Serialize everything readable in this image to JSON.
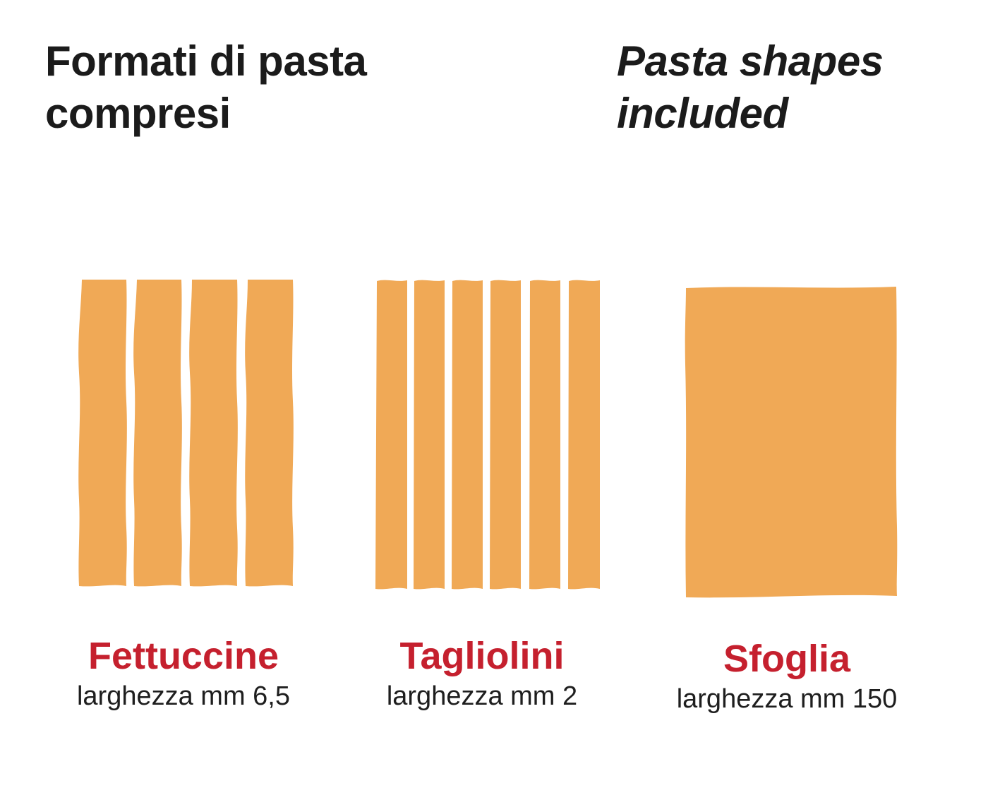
{
  "heading": {
    "italian": "Formati di pasta compresi",
    "english": "Pasta shapes included"
  },
  "colors": {
    "pasta": "#F0A956",
    "name_red": "#C5202E",
    "text_dark": "#1E1E1E"
  },
  "shapes": [
    {
      "name": "Fettuccine",
      "width_text": "larghezza mm 6,5",
      "strips": 4
    },
    {
      "name": "Tagliolini",
      "width_text": "larghezza mm 2",
      "strips": 6
    },
    {
      "name": "Sfoglia",
      "width_text": "larghezza mm 150",
      "strips": 1
    }
  ]
}
